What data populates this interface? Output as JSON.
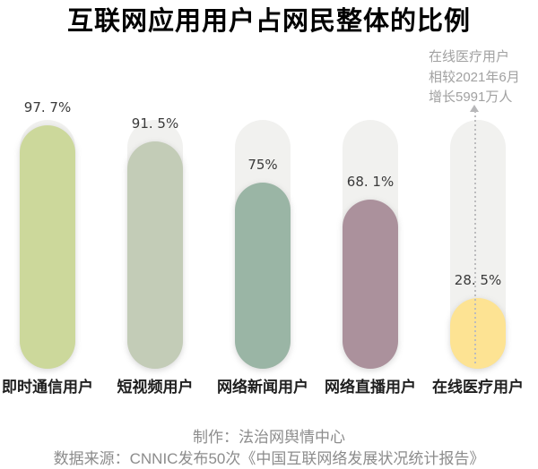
{
  "title": "互联网应用用户占网民整体的比例",
  "annotation": {
    "lines": [
      "在线医疗用户",
      "相较2021年6月",
      "增长5991万人"
    ],
    "full_text": "在线医疗用户相较2021年6月增长5991万人"
  },
  "footer": {
    "credit": "制作：法治网舆情中心",
    "source": "数据来源：CNNIC发布50次《中国互联网络发展状况统计报告》"
  },
  "colors": {
    "track": "#f1f1ef",
    "dotted_line": "#bcbcbe",
    "value_label": "#3a3a3a",
    "category_label": "#1f1f1f",
    "annotation_text": "#a1a1a1",
    "footer_text": "#8c8c8c",
    "title_text": "#000000"
  },
  "chart_data": {
    "type": "bar",
    "title": "互联网应用用户占网民整体的比例",
    "categories": [
      "即时通信用户",
      "短视频用户",
      "网络新闻用户",
      "网络直播用户",
      "在线医疗用户"
    ],
    "values": [
      97.7,
      91.5,
      75,
      68.1,
      28.5
    ],
    "value_labels": [
      "97. 7%",
      "91. 5%",
      "75%",
      "68. 1%",
      "28. 5%"
    ],
    "bar_colors": [
      "#ccd89b",
      "#c3ccb7",
      "#9ab5a5",
      "#ab919c",
      "#fde393"
    ],
    "xlabel": "",
    "ylabel": "",
    "ylim": [
      0,
      100
    ],
    "unit": "%",
    "grid": false,
    "legend": false,
    "bar_style": "rounded pill on light-gray pill track",
    "annotation": "在线医疗用户相较2021年6月增长5991万人"
  }
}
